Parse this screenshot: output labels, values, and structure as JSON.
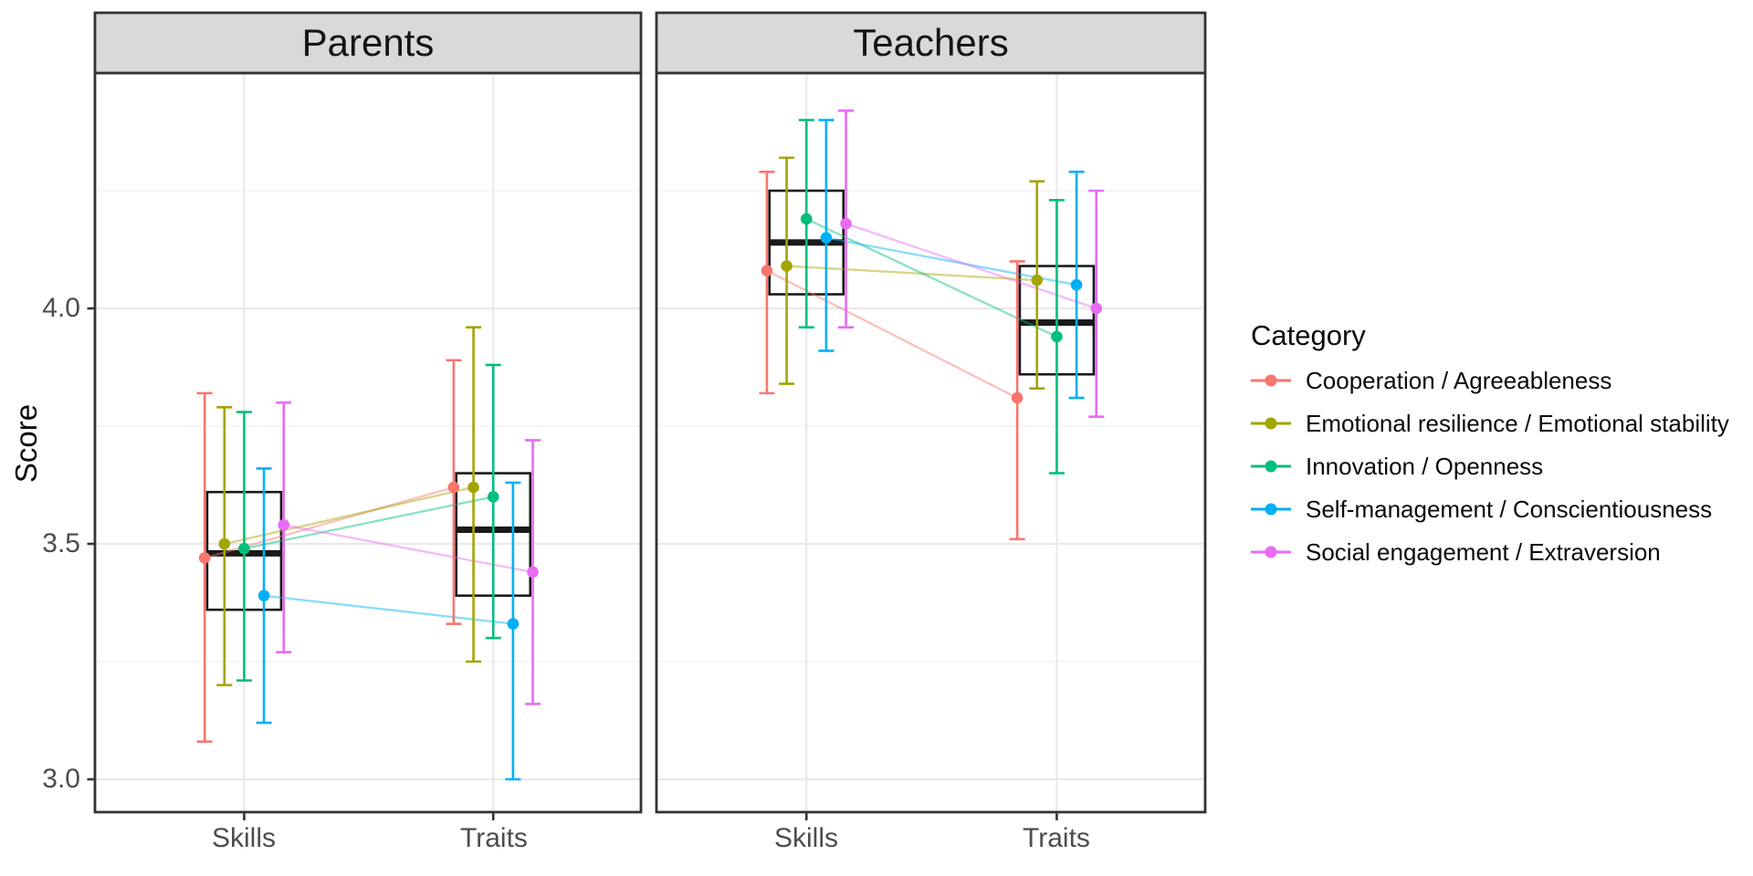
{
  "figure": {
    "background": "#ffffff",
    "panel_background": "#ffffff",
    "panel_border_color": "#333333",
    "strip_fill": "#d9d9d9",
    "grid_major_color": "#e9e9e9",
    "grid_minor_color": "#f4f4f4",
    "tick_label_color": "#4d4d4d",
    "box_color": "#1a1a1a"
  },
  "chart_data": {
    "type": "scatter",
    "subtype": "dodged points with error bars, connecting lines and boxplots, faceted",
    "facet_labels": [
      "Parents",
      "Teachers"
    ],
    "x_axis": {
      "categories": [
        "Skills",
        "Traits"
      ]
    },
    "y_axis": {
      "label": "Score",
      "ticks": [
        "4.0",
        "3.5",
        "3.0"
      ],
      "tick_values": [
        4.0,
        3.5,
        3.0
      ],
      "minor_tick_values": [
        3.25,
        3.75,
        4.25
      ],
      "range": [
        2.93,
        4.5
      ],
      "grid": true
    },
    "legend": {
      "title": "Category",
      "position": "right"
    },
    "series": [
      {
        "name": "Cooperation / Agreeableness",
        "color": "#F8766D",
        "data": [
          {
            "facet": "Parents",
            "x": "Skills",
            "y": 3.47,
            "ci_low": 3.08,
            "ci_high": 3.82
          },
          {
            "facet": "Parents",
            "x": "Traits",
            "y": 3.62,
            "ci_low": 3.33,
            "ci_high": 3.89
          },
          {
            "facet": "Teachers",
            "x": "Skills",
            "y": 4.08,
            "ci_low": 3.82,
            "ci_high": 4.29
          },
          {
            "facet": "Teachers",
            "x": "Traits",
            "y": 3.81,
            "ci_low": 3.51,
            "ci_high": 4.1
          }
        ]
      },
      {
        "name": "Emotional resilience / Emotional stability",
        "color": "#A3A500",
        "data": [
          {
            "facet": "Parents",
            "x": "Skills",
            "y": 3.5,
            "ci_low": 3.2,
            "ci_high": 3.79
          },
          {
            "facet": "Parents",
            "x": "Traits",
            "y": 3.62,
            "ci_low": 3.25,
            "ci_high": 3.96
          },
          {
            "facet": "Teachers",
            "x": "Skills",
            "y": 4.09,
            "ci_low": 3.84,
            "ci_high": 4.32
          },
          {
            "facet": "Teachers",
            "x": "Traits",
            "y": 4.06,
            "ci_low": 3.83,
            "ci_high": 4.27
          }
        ]
      },
      {
        "name": "Innovation / Openness",
        "color": "#00BF7D",
        "data": [
          {
            "facet": "Parents",
            "x": "Skills",
            "y": 3.49,
            "ci_low": 3.21,
            "ci_high": 3.78
          },
          {
            "facet": "Parents",
            "x": "Traits",
            "y": 3.6,
            "ci_low": 3.3,
            "ci_high": 3.88
          },
          {
            "facet": "Teachers",
            "x": "Skills",
            "y": 4.19,
            "ci_low": 3.96,
            "ci_high": 4.4
          },
          {
            "facet": "Teachers",
            "x": "Traits",
            "y": 3.94,
            "ci_low": 3.65,
            "ci_high": 4.23
          }
        ]
      },
      {
        "name": "Self-management / Conscientiousness",
        "color": "#00B0F6",
        "data": [
          {
            "facet": "Parents",
            "x": "Skills",
            "y": 3.39,
            "ci_low": 3.12,
            "ci_high": 3.66
          },
          {
            "facet": "Parents",
            "x": "Traits",
            "y": 3.33,
            "ci_low": 3.0,
            "ci_high": 3.63
          },
          {
            "facet": "Teachers",
            "x": "Skills",
            "y": 4.15,
            "ci_low": 3.91,
            "ci_high": 4.4
          },
          {
            "facet": "Teachers",
            "x": "Traits",
            "y": 4.05,
            "ci_low": 3.81,
            "ci_high": 4.29
          }
        ]
      },
      {
        "name": "Social engagement / Extraversion",
        "color": "#E76BF3",
        "data": [
          {
            "facet": "Parents",
            "x": "Skills",
            "y": 3.54,
            "ci_low": 3.27,
            "ci_high": 3.8
          },
          {
            "facet": "Parents",
            "x": "Traits",
            "y": 3.44,
            "ci_low": 3.16,
            "ci_high": 3.72
          },
          {
            "facet": "Teachers",
            "x": "Skills",
            "y": 4.18,
            "ci_low": 3.96,
            "ci_high": 4.42
          },
          {
            "facet": "Teachers",
            "x": "Traits",
            "y": 4.0,
            "ci_low": 3.77,
            "ci_high": 4.25
          }
        ]
      }
    ],
    "boxplots": [
      {
        "facet": "Parents",
        "x": "Skills",
        "q1": 3.36,
        "median": 3.48,
        "q3": 3.61
      },
      {
        "facet": "Parents",
        "x": "Traits",
        "q1": 3.39,
        "median": 3.53,
        "q3": 3.65
      },
      {
        "facet": "Teachers",
        "x": "Skills",
        "q1": 4.03,
        "median": 4.14,
        "q3": 4.25
      },
      {
        "facet": "Teachers",
        "x": "Traits",
        "q1": 3.86,
        "median": 3.97,
        "q3": 4.09
      }
    ]
  }
}
